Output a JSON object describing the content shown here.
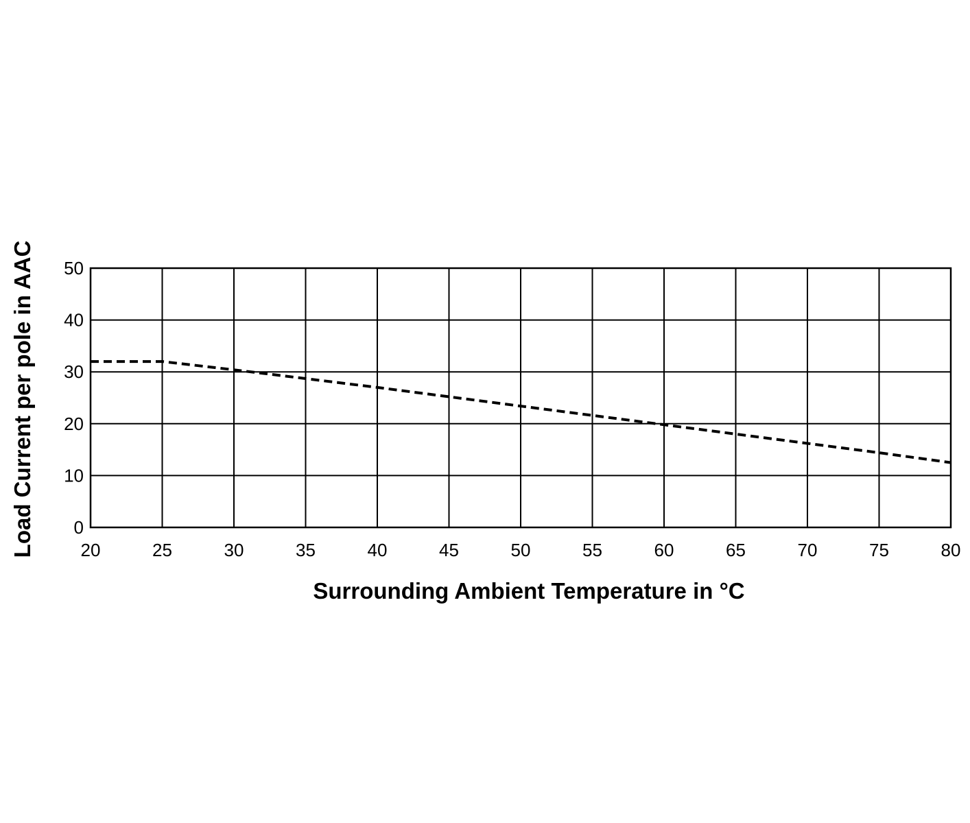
{
  "chart_data": {
    "type": "line",
    "title": "",
    "xlabel": "Surrounding Ambient Temperature in",
    "xlabel_unit": "°C",
    "ylabel": "Load Current per pole in AAC",
    "xlim": [
      20,
      80
    ],
    "ylim": [
      0,
      50
    ],
    "x_ticks": [
      20,
      25,
      30,
      35,
      40,
      45,
      50,
      55,
      60,
      65,
      70,
      75,
      80
    ],
    "y_ticks": [
      0,
      10,
      20,
      30,
      40,
      50
    ],
    "grid": true,
    "legend": "none",
    "series": [
      {
        "line_style": "dashed",
        "color": "#000000",
        "x": [
          20,
          25,
          30,
          35,
          40,
          45,
          50,
          55,
          60,
          65,
          70,
          75,
          80
        ],
        "y": [
          32,
          32,
          30.4,
          28.7,
          27.0,
          25.2,
          23.4,
          21.6,
          19.8,
          18.0,
          16.2,
          14.4,
          12.5
        ]
      }
    ]
  }
}
